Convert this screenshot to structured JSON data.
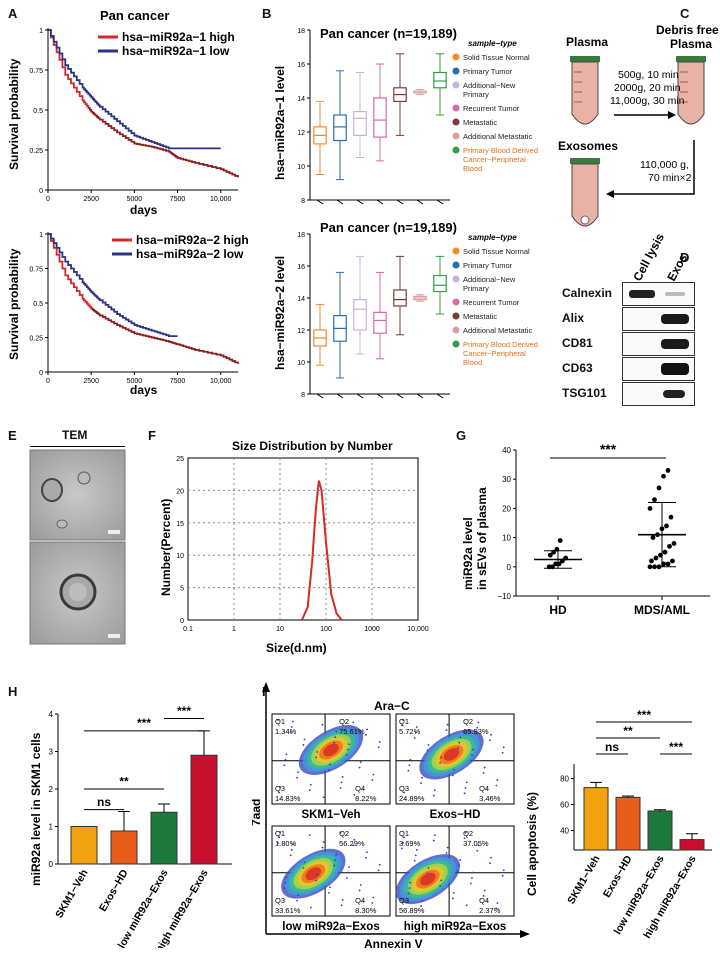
{
  "panels": {
    "A": "A",
    "B": "B",
    "C": "C",
    "D": "D",
    "E": "E",
    "F": "F",
    "G": "G",
    "H": "H",
    "I": "I"
  },
  "colors": {
    "red": "#d7262b",
    "navy": "#2a3383",
    "darkred": "#7a2323",
    "orange": "#f2a20c",
    "orange2": "#e85d1a",
    "green": "#1e7a3c",
    "crimson": "#c8102e"
  },
  "panel_a": {
    "title": "Pan cancer",
    "ylabel": "Survival probability",
    "xlabel": "days",
    "yticks": [
      "0",
      "0.25",
      "0.5",
      "0.75",
      "1"
    ],
    "xticks": [
      "0",
      "2500",
      "5000",
      "7500",
      "10,000"
    ],
    "top_legend": [
      "hsa−miR92a−1 high",
      "hsa−miR92a−1 low"
    ],
    "bottom_legend": [
      "hsa−miR92a−2 high",
      "hsa−miR92a−2 low"
    ]
  },
  "panel_b": {
    "title1": "Pan cancer (n=19,189)",
    "title2": "Pan cancer (n=19,189)",
    "ylabel1": "hsa−miR92a−1 level",
    "ylabel2": "hsa−miR92a−2 level",
    "yticks": [
      "8",
      "10",
      "12",
      "14",
      "16",
      "18"
    ],
    "legend_title": "sample−type",
    "legend": [
      {
        "label": "Solid Tissue Normal",
        "color": "#f28c28"
      },
      {
        "label": "Primary Tumor",
        "color": "#2b6cb0"
      },
      {
        "label": "Additional−New\nPrimary",
        "color": "#c9b3dc"
      },
      {
        "label": "Recurrent Tumor",
        "color": "#d96aa8"
      },
      {
        "label": "Metastatic",
        "color": "#7b3b3b"
      },
      {
        "label": "Additional Metastatic",
        "color": "#d9a0a0"
      },
      {
        "label": "Primary Blood Derived\nCancer−Peripheral\nBlood",
        "color": "#2ea043"
      }
    ]
  },
  "panel_c": {
    "plasma": "Plasma",
    "debris_free": "Debris free\nPlasma",
    "exosomes": "Exosomes",
    "spin1": [
      "500g, 10 min",
      "2000g, 20 min",
      "11,000g, 30 min"
    ],
    "spin2": [
      "110,000 g,",
      "70 min×2"
    ]
  },
  "panel_d": {
    "columns": [
      "Cell lysis",
      "Exos"
    ],
    "rows": [
      "Calnexin",
      "Alix",
      "CD81",
      "CD63",
      "TSG101"
    ]
  },
  "panel_e": {
    "title": "TEM"
  },
  "panel_f": {
    "title": "Size Distribution by Number",
    "ylabel": "Number(Percent)",
    "xlabel": "Size(d.nm)",
    "yticks": [
      "0",
      "5",
      "10",
      "15",
      "20",
      "25"
    ],
    "xticks": [
      "0.1",
      "1",
      "10",
      "100",
      "1000",
      "10,000"
    ]
  },
  "panel_g": {
    "ylabel": "miR92a level\nin sEVs of plasma",
    "categories": [
      "HD",
      "MDS/AML"
    ],
    "sig": "***",
    "yticks": [
      "−10",
      "0",
      "10",
      "20",
      "30",
      "40"
    ]
  },
  "panel_h": {
    "ylabel": "miR92a level in SKM1 cells",
    "categories": [
      "SKM1−Veh",
      "Exos−HD",
      "low miR92a−Exos",
      "high miR92a−Exos"
    ],
    "yticks": [
      "0",
      "1",
      "2",
      "3",
      "4"
    ],
    "sigs": [
      "ns",
      "**",
      "***",
      "***"
    ]
  },
  "panel_i": {
    "header": "Ara−C",
    "ylabel": "7aad",
    "xlabel": "Annexin V",
    "plots": [
      {
        "name": "SKM1−Veh",
        "q1": "Q1\n1.34%",
        "q2": "Q2\n75.61%",
        "q3": "Q3\n14.83%",
        "q4": "Q4\n8.22%"
      },
      {
        "name": "Exos−HD",
        "q1": "Q1\n5.72%",
        "q2": "Q2\n65.93%",
        "q3": "Q3\n24.89%",
        "q4": "Q4\n3.46%"
      },
      {
        "name": "low miR92a−Exos",
        "q1": "Q1\n1.80%",
        "q2": "Q2\n56.29%",
        "q3": "Q3\n33.61%",
        "q4": "Q4\n8.30%"
      },
      {
        "name": "high miR92a−Exos",
        "q1": "Q1\n3.69%",
        "q2": "Q2\n37.05%",
        "q3": "Q3\n56.89%",
        "q4": "Q4\n2.37%"
      }
    ],
    "bar_ylabel": "Cell apoptosis (%)",
    "bar_yticks": [
      "40",
      "60",
      "80"
    ],
    "bar_categories": [
      "SKM1−Veh",
      "Exos−HD",
      "low miR92a−Exos",
      "high miR92a−Exos"
    ],
    "sigs": [
      "ns",
      "**",
      "***",
      "***"
    ]
  },
  "chart_data": [
    {
      "type": "line",
      "title": "Pan cancer",
      "xlabel": "days",
      "ylabel": "Survival probability",
      "xlim": [
        0,
        11000
      ],
      "ylim": [
        0,
        1
      ],
      "series": [
        {
          "name": "hsa−miR92a−1 high",
          "x": [
            0,
            1000,
            2000,
            2500,
            3000,
            4000,
            5000,
            6000,
            7000,
            7500,
            8500,
            10000,
            11000
          ],
          "y": [
            1,
            0.72,
            0.56,
            0.49,
            0.44,
            0.36,
            0.29,
            0.27,
            0.24,
            0.2,
            0.17,
            0.13,
            0.08
          ]
        },
        {
          "name": "hsa−miR92a−1 low",
          "x": [
            0,
            1000,
            2000,
            2500,
            3000,
            4000,
            5000,
            6000,
            7000,
            8000,
            9000,
            10000
          ],
          "y": [
            1,
            0.78,
            0.64,
            0.58,
            0.52,
            0.43,
            0.34,
            0.3,
            0.26,
            0.26,
            0.26,
            0.26
          ]
        }
      ]
    },
    {
      "type": "line",
      "title": "",
      "xlabel": "days",
      "ylabel": "Survival probability",
      "xlim": [
        0,
        11000
      ],
      "ylim": [
        0,
        1
      ],
      "series": [
        {
          "name": "hsa−miR92a−2 high",
          "x": [
            0,
            1000,
            2000,
            2500,
            3000,
            4000,
            5000,
            6000,
            7000,
            7500,
            8500,
            10000,
            11000
          ],
          "y": [
            1,
            0.7,
            0.53,
            0.46,
            0.41,
            0.34,
            0.28,
            0.25,
            0.22,
            0.2,
            0.16,
            0.12,
            0.06
          ]
        },
        {
          "name": "hsa−miR92a−2 low",
          "x": [
            0,
            1000,
            2000,
            2500,
            3000,
            4000,
            5000,
            6000,
            7000,
            7500
          ],
          "y": [
            1,
            0.8,
            0.65,
            0.58,
            0.52,
            0.42,
            0.34,
            0.3,
            0.26,
            0.26
          ]
        }
      ]
    },
    {
      "type": "box",
      "title": "Pan cancer (n=19,189)",
      "ylabel": "hsa−miR92a−1 level",
      "ylim": [
        8,
        18
      ],
      "boxes": [
        [
          9.5,
          11.3,
          11.8,
          12.3,
          13.8
        ],
        [
          9.2,
          11.5,
          12.3,
          13.0,
          15.6
        ],
        [
          10.5,
          11.8,
          12.8,
          13.2,
          15.5
        ],
        [
          10.3,
          11.7,
          12.7,
          14.0,
          16.0
        ],
        [
          11.8,
          13.8,
          14.2,
          14.6,
          16.6
        ],
        [
          14.2,
          14.3,
          14.3,
          14.4,
          14.5
        ],
        [
          13.0,
          14.6,
          15.0,
          15.5,
          16.6
        ]
      ]
    },
    {
      "type": "box",
      "title": "Pan cancer (n=19,189)",
      "ylabel": "hsa−miR92a−2 level",
      "ylim": [
        8,
        18
      ],
      "boxes": [
        [
          9.8,
          11.0,
          11.5,
          12.0,
          13.6
        ],
        [
          9.0,
          11.3,
          12.1,
          12.9,
          15.6
        ],
        [
          10.5,
          12.0,
          13.3,
          13.9,
          16.6
        ],
        [
          10.2,
          11.8,
          12.6,
          13.1,
          15.6
        ],
        [
          11.7,
          13.5,
          13.9,
          14.5,
          16.6
        ],
        [
          13.8,
          13.9,
          14.0,
          14.1,
          14.2
        ],
        [
          13.0,
          14.4,
          14.8,
          15.4,
          16.6
        ]
      ]
    },
    {
      "type": "line",
      "title": "Size Distribution by Number",
      "xlabel": "Size(d.nm)",
      "ylabel": "Number(Percent)",
      "xscale": "log",
      "xlim": [
        0.1,
        10000
      ],
      "ylim": [
        0,
        25
      ],
      "series": [
        {
          "name": "size",
          "x": [
            30,
            40,
            50,
            60,
            70,
            80,
            100,
            130,
            170,
            220
          ],
          "y": [
            0,
            2,
            9,
            17,
            21.5,
            20,
            12,
            4,
            1,
            0
          ]
        }
      ]
    },
    {
      "type": "scatter",
      "title": "",
      "ylabel": "miR92a level in sEVs of plasma",
      "categories": [
        "HD",
        "MDS/AML"
      ],
      "ylim": [
        -10,
        40
      ],
      "series": [
        {
          "name": "HD",
          "values": [
            0,
            0,
            1,
            1,
            2,
            3,
            4,
            5,
            6,
            9
          ],
          "mean": 2.5,
          "sd": 3
        },
        {
          "name": "MDS/AML",
          "values": [
            0,
            0,
            0,
            1,
            1,
            2,
            2,
            3,
            4,
            5,
            7,
            8,
            10,
            11,
            13,
            14,
            17,
            20,
            23,
            27,
            31,
            33
          ],
          "mean": 11,
          "sd": 11
        }
      ]
    },
    {
      "type": "bar",
      "title": "",
      "ylabel": "miR92a level in SKM1 cells",
      "categories": [
        "SKM1−Veh",
        "Exos−HD",
        "low miR92a−Exos",
        "high miR92a−Exos"
      ],
      "values": [
        1.0,
        0.88,
        1.38,
        2.9
      ],
      "errors": [
        0,
        0.52,
        0.22,
        0.65
      ],
      "ylim": [
        0,
        4
      ]
    },
    {
      "type": "bar",
      "title": "",
      "ylabel": "Cell apoptosis (%)",
      "categories": [
        "SKM1−Veh",
        "Exos−HD",
        "low miR92a−Exos",
        "high miR92a−Exos"
      ],
      "values": [
        73,
        65.5,
        55,
        33
      ],
      "errors": [
        4,
        1,
        1,
        4.5
      ],
      "ylim": [
        25,
        85
      ]
    }
  ]
}
